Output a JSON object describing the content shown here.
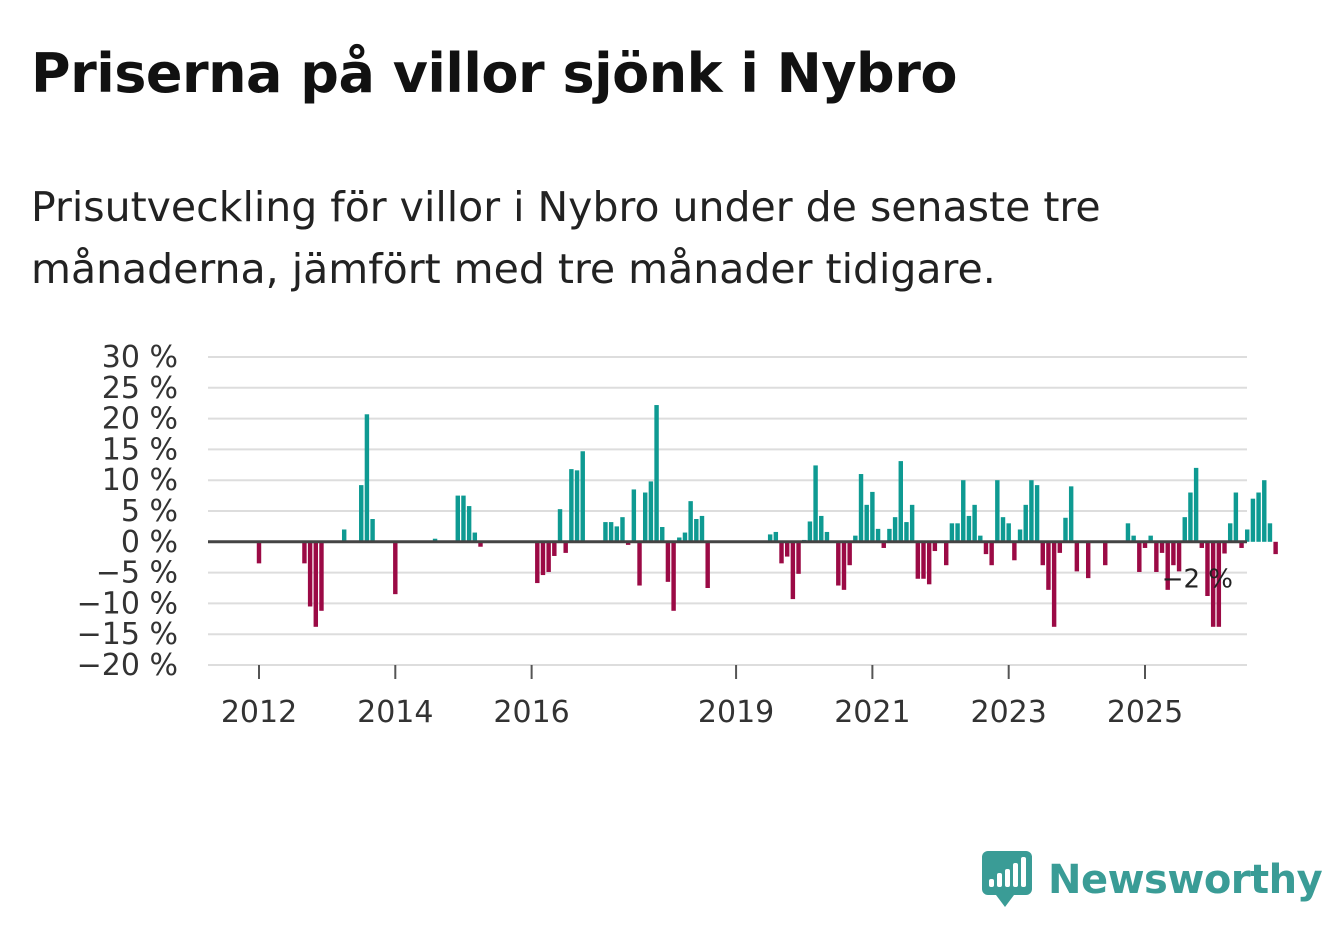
{
  "header": {
    "title": "Priserna på villor sjönk i Nybro",
    "subtitle": "Prisutveckling för villor i Nybro under de senaste tre månaderna, jämfört med tre månader tidigare."
  },
  "brand": {
    "name": "Newsworthy",
    "color": "#3a9c96"
  },
  "colors": {
    "positive": "#0e9a92",
    "negative": "#9b0a45",
    "grid": "#dddddd",
    "zero": "#444444"
  },
  "chart_data": {
    "type": "bar",
    "title": "Priserna på villor sjönk i Nybro",
    "subtitle": "Prisutveckling för villor i Nybro under de senaste tre månaderna, jämfört med tre månader tidigare.",
    "xlabel": "",
    "ylabel": "",
    "ylim": [
      -20,
      30
    ],
    "y_ticks": [
      30,
      25,
      20,
      15,
      10,
      5,
      0,
      -5,
      -10,
      -15,
      -20
    ],
    "y_tick_labels": [
      "30 %",
      "25 %",
      "20 %",
      "15 %",
      "10 %",
      "5 %",
      "0 %",
      "−5 %",
      "−10 %",
      "−15 %",
      "−20 %"
    ],
    "x_ticks": [
      2012,
      2014,
      2016,
      2019,
      2021,
      2023,
      2025
    ],
    "x_tick_labels": [
      "2012",
      "2014",
      "2016",
      "2019",
      "2021",
      "2023",
      "2025"
    ],
    "frequency": "monthly",
    "start": "2011-09",
    "values": [
      0,
      0,
      0,
      0,
      -3.5,
      0,
      0,
      0,
      0,
      0,
      0,
      0,
      -3.5,
      -10.5,
      -13.8,
      -11.2,
      0,
      0,
      0,
      2,
      0,
      0,
      9.2,
      20.7,
      3.7,
      0,
      0,
      0,
      -8.5,
      0,
      0,
      0,
      0,
      0,
      0,
      0.5,
      0,
      0,
      0,
      7.5,
      7.5,
      5.8,
      1.5,
      -0.8,
      0,
      0,
      0,
      0,
      0,
      0,
      0,
      0,
      0,
      -6.7,
      -5.4,
      -4.9,
      -2.3,
      5.3,
      -1.8,
      11.8,
      11.6,
      14.7,
      0,
      0,
      0,
      3.2,
      3.2,
      2.5,
      4,
      -0.5,
      8.5,
      -7.1,
      8,
      9.8,
      22.2,
      2.4,
      -6.5,
      -11.2,
      0.7,
      1.5,
      6.6,
      3.7,
      4.2,
      -7.5,
      0,
      0,
      0,
      0,
      0,
      0,
      0,
      0,
      0,
      0,
      1.2,
      1.6,
      -3.5,
      -2.4,
      -9.3,
      -5.2,
      0.3,
      3.3,
      12.4,
      4.2,
      1.6,
      0,
      -7.1,
      -7.8,
      -3.8,
      1,
      11,
      6,
      8.1,
      2.1,
      -1,
      2.1,
      4,
      13.1,
      3.2,
      6,
      -6,
      -6,
      -6.9,
      -1.5,
      0,
      -3.8,
      3,
      3,
      10,
      4.2,
      6,
      1,
      -2,
      -3.8,
      10,
      4,
      3,
      -3,
      2,
      6,
      10,
      9.2,
      -3.8,
      -7.8,
      -13.8,
      -1.8,
      3.9,
      9,
      -4.8,
      0,
      -5.9,
      0,
      0,
      -3.8,
      0,
      0,
      0,
      3,
      1,
      -4.9,
      -1,
      1,
      -4.9,
      -1.8,
      -7.8,
      -3.8,
      -4.8,
      4,
      8,
      12,
      -1,
      -8.8,
      -13.8,
      -13.8,
      -1.9,
      3,
      8,
      -1,
      2,
      7,
      8,
      10,
      3,
      -2
    ],
    "last_value_label": "−2 %"
  }
}
